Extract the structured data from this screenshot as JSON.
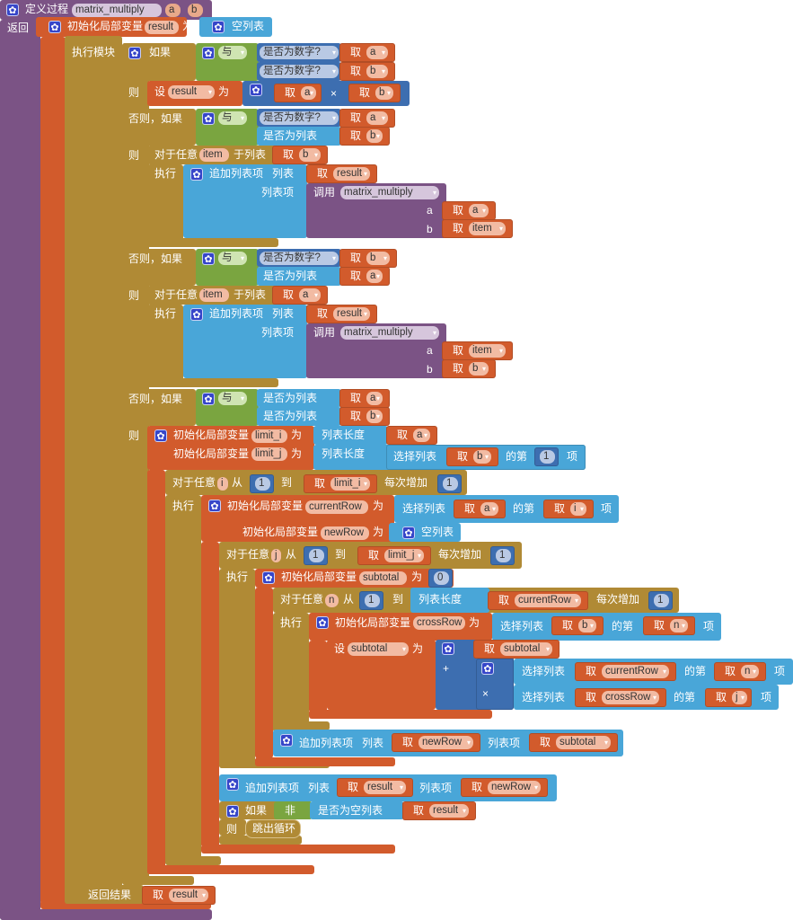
{
  "procedure": {
    "define_label": "定义过程",
    "name": "matrix_multiply",
    "params": [
      "a",
      "b"
    ],
    "return_label": "返回"
  },
  "c": {
    "get": "取",
    "init_local": "初始化局部变量",
    "as": "为",
    "set": "设",
    "empty_list": "空列表",
    "do_block": "执行模块",
    "if": "如果",
    "else_if": "否则，如果",
    "then": "则",
    "and": "与",
    "is_number": "是否为数字?",
    "is_list": "是否为列表",
    "for_each": "对于任意",
    "in_list": "于列表",
    "do": "执行",
    "add_items": "追加列表项",
    "list": "列表",
    "item": "列表项",
    "call": "调用",
    "list_length": "列表长度",
    "select": "选择列表",
    "index_of": "的第",
    "item_suffix": "项",
    "from": "从",
    "to": "到",
    "step": "每次增加",
    "not": "非",
    "is_empty": "是否为空列表",
    "break": "跳出循环",
    "return_result": "返回结果",
    "times": "×",
    "plus": "+"
  },
  "vars": {
    "result": "result",
    "a": "a",
    "b": "b",
    "item": "item",
    "limit_i": "limit_i",
    "limit_j": "limit_j",
    "i": "i",
    "j": "j",
    "n": "n",
    "currentRow": "currentRow",
    "newRow": "newRow",
    "subtotal": "subtotal",
    "crossRow": "crossRow"
  },
  "numbers": {
    "one": "1",
    "zero": "0"
  },
  "colors": {
    "procedure": "#7b5385",
    "variables": "#d25b2c",
    "control": "#b08a35",
    "logic": "#7aa540",
    "math": "#3d6eb0",
    "lists": "#49a6d8"
  },
  "icons": {
    "mutator": "gear-icon",
    "dropdown": "dropdown-arrow-icon"
  }
}
